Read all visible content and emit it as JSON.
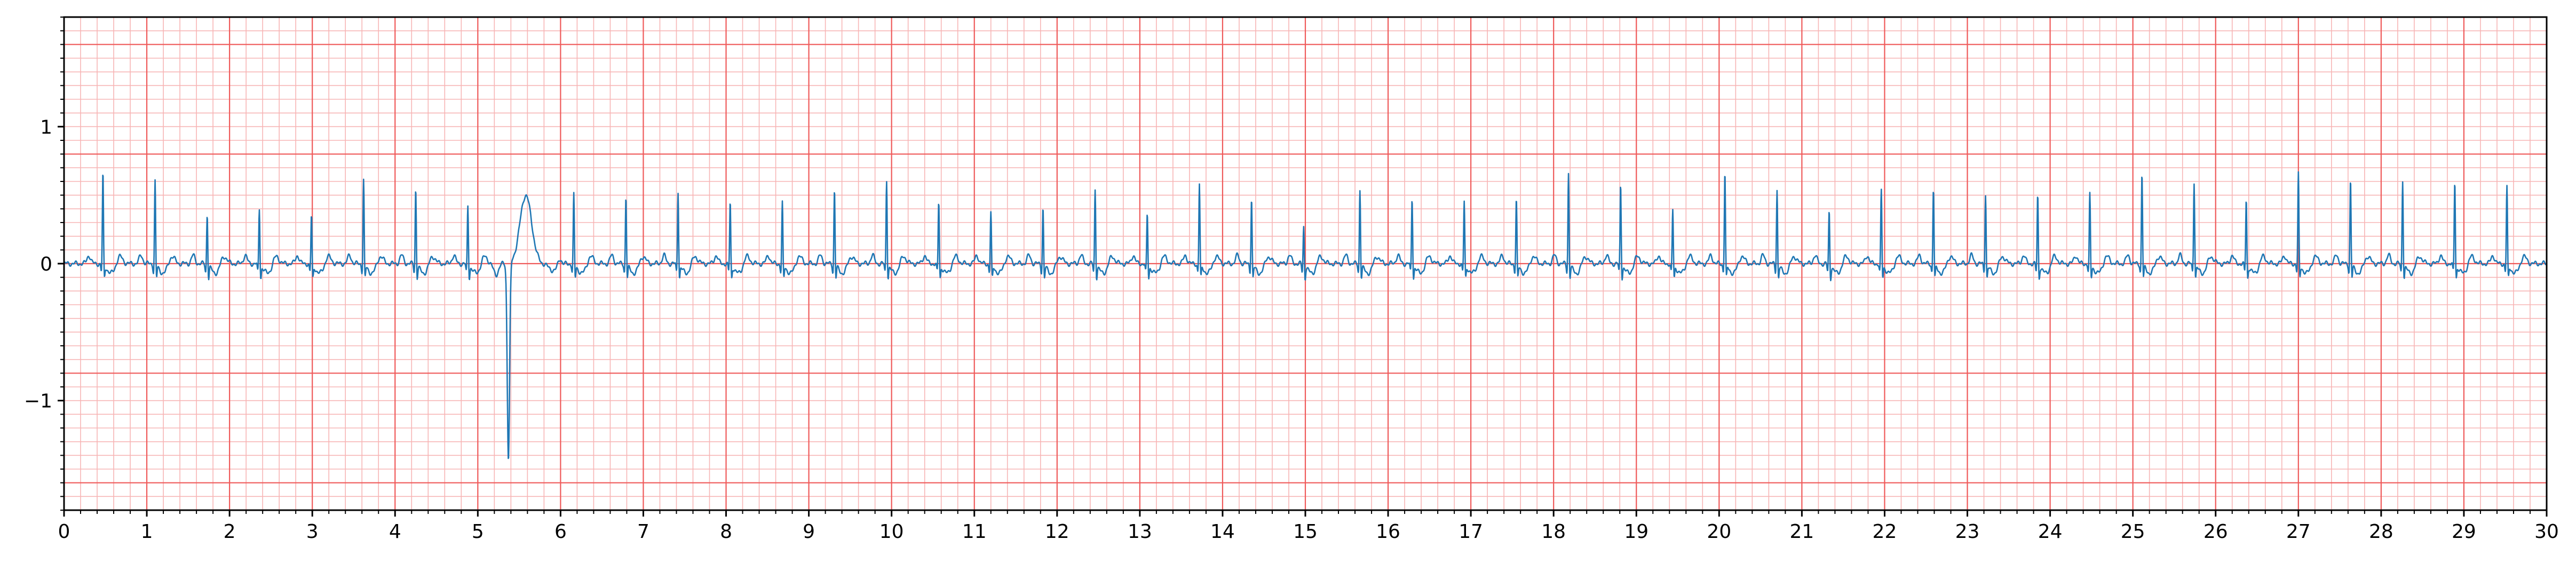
{
  "chart_data": {
    "type": "line",
    "title": "",
    "xlabel": "",
    "ylabel": "",
    "xlim": [
      0,
      30
    ],
    "ylim": [
      -1.8,
      1.8
    ],
    "x_ticks": [
      "0",
      "1",
      "2",
      "3",
      "4",
      "5",
      "6",
      "7",
      "8",
      "9",
      "10",
      "11",
      "12",
      "13",
      "14",
      "15",
      "16",
      "17",
      "18",
      "19",
      "20",
      "21",
      "22",
      "23",
      "24",
      "25",
      "26",
      "27",
      "28",
      "29",
      "30"
    ],
    "y_ticks": [
      {
        "value": 1,
        "label": "1"
      },
      {
        "value": 0,
        "label": "0"
      },
      {
        "value": -1,
        "label": "−1"
      }
    ],
    "major_grid_step": {
      "x": 1,
      "y": 0.8
    },
    "minor_grid_step": {
      "x": 0.2,
      "y": 0.1
    },
    "grid": true,
    "legend": "none",
    "colors": {
      "signal": "#1f77b4",
      "major_grid": "#ef5a5a",
      "minor_grid": "#f7b5b5"
    },
    "series": [
      {
        "beats": [
          {
            "t": 0.47,
            "r": 0.68
          },
          {
            "t": 1.1,
            "r": 0.62
          },
          {
            "t": 1.73,
            "r": 0.38
          },
          {
            "t": 2.36,
            "r": 0.42
          },
          {
            "t": 2.99,
            "r": 0.37
          },
          {
            "t": 3.62,
            "r": 0.63
          },
          {
            "t": 4.25,
            "r": 0.57
          },
          {
            "t": 4.88,
            "r": 0.44
          },
          {
            "t": 5.6,
            "r": 0.5,
            "q": -1.43,
            "wide": true
          },
          {
            "t": 6.16,
            "r": 0.52
          },
          {
            "t": 6.79,
            "r": 0.51
          },
          {
            "t": 7.42,
            "r": 0.55
          },
          {
            "t": 8.05,
            "r": 0.47
          },
          {
            "t": 8.68,
            "r": 0.46
          },
          {
            "t": 9.31,
            "r": 0.56
          },
          {
            "t": 9.94,
            "r": 0.63
          },
          {
            "t": 10.57,
            "r": 0.47
          },
          {
            "t": 11.2,
            "r": 0.39
          },
          {
            "t": 11.83,
            "r": 0.43
          },
          {
            "t": 12.46,
            "r": 0.56
          },
          {
            "t": 13.09,
            "r": 0.38
          },
          {
            "t": 13.72,
            "r": 0.6
          },
          {
            "t": 14.35,
            "r": 0.5
          },
          {
            "t": 14.98,
            "r": 0.29
          },
          {
            "t": 15.66,
            "r": 0.56
          },
          {
            "t": 16.29,
            "r": 0.5
          },
          {
            "t": 16.92,
            "r": 0.47
          },
          {
            "t": 17.55,
            "r": 0.49
          },
          {
            "t": 18.18,
            "r": 0.68
          },
          {
            "t": 18.81,
            "r": 0.6
          },
          {
            "t": 19.44,
            "r": 0.41
          },
          {
            "t": 20.07,
            "r": 0.69
          },
          {
            "t": 20.7,
            "r": 0.56
          },
          {
            "t": 21.33,
            "r": 0.4
          },
          {
            "t": 21.96,
            "r": 0.55
          },
          {
            "t": 22.59,
            "r": 0.57
          },
          {
            "t": 23.22,
            "r": 0.53
          },
          {
            "t": 23.85,
            "r": 0.52
          },
          {
            "t": 24.48,
            "r": 0.52
          },
          {
            "t": 25.11,
            "r": 0.68
          },
          {
            "t": 25.74,
            "r": 0.62
          },
          {
            "t": 26.37,
            "r": 0.49
          },
          {
            "t": 27.0,
            "r": 0.67
          },
          {
            "t": 27.63,
            "r": 0.63
          },
          {
            "t": 28.26,
            "r": 0.63
          },
          {
            "t": 28.89,
            "r": 0.62
          },
          {
            "t": 29.52,
            "r": 0.58
          }
        ]
      }
    ]
  }
}
